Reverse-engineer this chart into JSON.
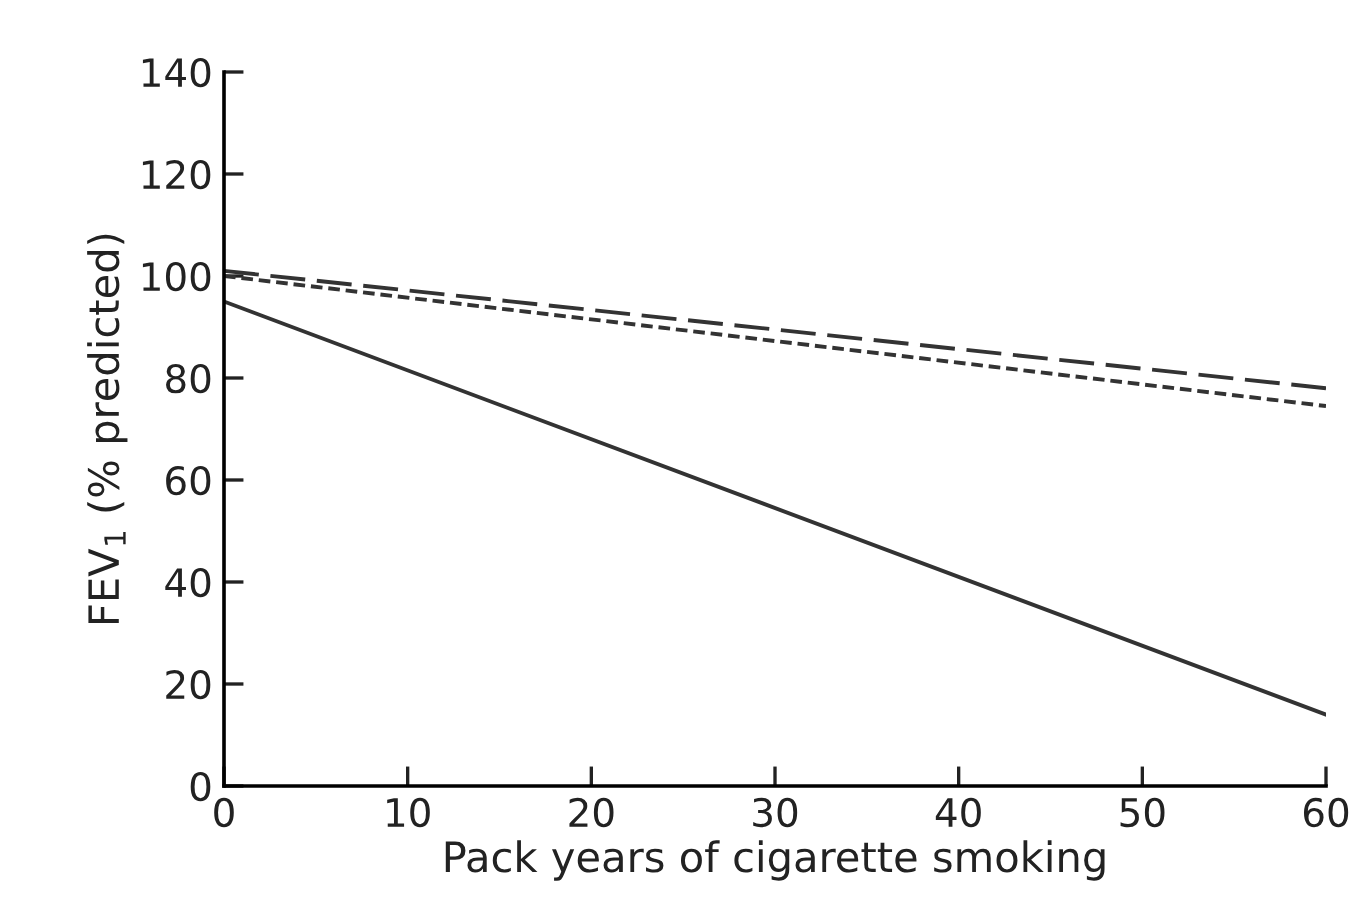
{
  "chart_data": {
    "type": "line",
    "xlabel": "Pack years of cigarette smoking",
    "ylabel": "FEV$_{1}$ (% predicted)",
    "x": [
      0,
      60
    ],
    "series": [
      {
        "color": "#333333",
        "line_style": "solid",
        "values": [
          95,
          14
        ]
      },
      {
        "color": "#333333",
        "line_style": "dashed",
        "values": [
          101,
          78
        ]
      },
      {
        "color": "#333333",
        "line_style": "dotted",
        "values": [
          100,
          74.5
        ]
      }
    ],
    "xlim": [
      0,
      60
    ],
    "xticks": [
      0,
      10,
      20,
      30,
      40,
      50,
      60
    ],
    "ylim": [
      0,
      140
    ],
    "yticks": [
      0,
      20,
      40,
      60,
      80,
      100,
      120,
      140
    ],
    "grid": false,
    "legend": false,
    "marker": "none"
  }
}
